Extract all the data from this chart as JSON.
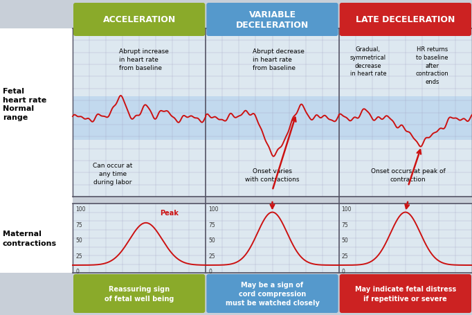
{
  "title_boxes": [
    {
      "label": "ACCELERATION",
      "color": "#8aaa2a"
    },
    {
      "label": "VARIABLE\nDECELERATION",
      "color": "#5599cc"
    },
    {
      "label": "LATE DECELERATION",
      "color": "#cc2222"
    }
  ],
  "bottom_boxes": [
    {
      "label": "Reassuring sign\nof fetal well being",
      "color": "#8aaa2a"
    },
    {
      "label": "May be a sign of\ncord compression\nmust be watched closely",
      "color": "#5599cc"
    },
    {
      "label": "May indicate fetal distress\nif repetitive or severe",
      "color": "#cc2222"
    }
  ],
  "grid_bg": "#dde8f0",
  "normal_range_bg": "#c0d8ee",
  "line_color": "#cc1111",
  "grid_line_color": "#9999bb",
  "outer_bg": "#c8cfd8",
  "chart_bg": "#e8eef5",
  "white_left_bg": "#f0f0f0"
}
